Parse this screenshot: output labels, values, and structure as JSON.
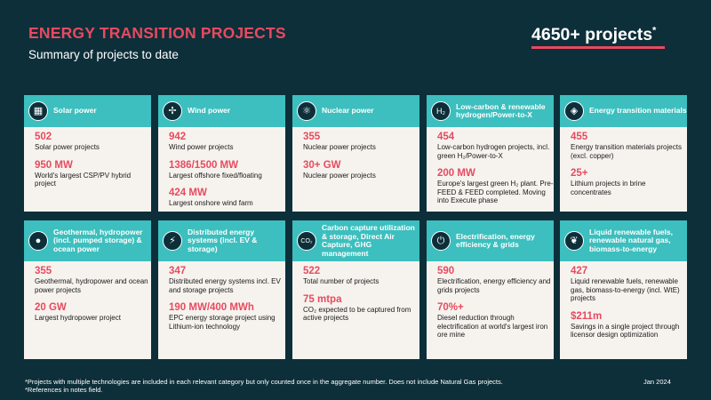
{
  "header": {
    "title": "ENERGY TRANSITION PROJECTS",
    "subtitle": "Summary of projects to date",
    "total": "4650+ projects",
    "total_mark": "*"
  },
  "cards": [
    {
      "label": "Solar power",
      "icon": "solar-panel-icon",
      "stats": [
        {
          "value": "502",
          "desc": "Solar power projects"
        },
        {
          "value": "950 MW",
          "desc": "World's largest CSP/PV hybrid project"
        }
      ]
    },
    {
      "label": "Wind power",
      "icon": "wind-turbine-icon",
      "stats": [
        {
          "value": "942",
          "desc": "Wind power projects"
        },
        {
          "value": "1386/1500 MW",
          "desc": "Largest offshore fixed/floating"
        },
        {
          "value": "424 MW",
          "desc": "Largest onshore wind farm"
        }
      ]
    },
    {
      "label": "Nuclear power",
      "icon": "atom-icon",
      "stats": [
        {
          "value": "355",
          "desc": "Nuclear power projects"
        },
        {
          "value": "30+ GW",
          "desc": "Nuclear power projects"
        }
      ]
    },
    {
      "label": "Low-carbon & renewable hydrogen/Power-to-X",
      "icon": "hydrogen-icon",
      "stats": [
        {
          "value": "454",
          "desc": "Low-carbon hydrogen projects, incl. green H₂/Power-to-X"
        },
        {
          "value": "200 MW",
          "desc": "Europe's largest green H₂ plant. Pre-FEED & FEED completed. Moving into Execute phase"
        }
      ]
    },
    {
      "label": "Energy transition materials",
      "icon": "materials-icon",
      "stats": [
        {
          "value": "455",
          "desc": "Energy transition materials projects (excl. copper)"
        },
        {
          "value": "25+",
          "desc": "Lithium projects in brine concentrates"
        }
      ]
    },
    {
      "label": "Geothermal, hydropower (incl. pumped storage) & ocean power",
      "icon": "water-drop-icon",
      "stats": [
        {
          "value": "355",
          "desc": "Geothermal, hydropower and ocean power projects"
        },
        {
          "value": "20 GW",
          "desc": "Largest hydropower project"
        }
      ]
    },
    {
      "label": "Distributed energy systems (incl. EV & storage)",
      "icon": "lightning-bolt-icon",
      "stats": [
        {
          "value": "347",
          "desc": "Distributed energy systems incl. EV and storage projects"
        },
        {
          "value": "190 MW/400 MWh",
          "desc": "EPC energy storage project using Lithium-ion technology"
        }
      ]
    },
    {
      "label": "Carbon capture utilization & storage, Direct Air Capture, GHG management",
      "icon": "co2-cloud-icon",
      "stats": [
        {
          "value": "522",
          "desc": "Total number of projects"
        },
        {
          "value": "75 mtpa",
          "desc": "CO₂ expected to be captured from active projects"
        }
      ]
    },
    {
      "label": "Electrification, energy efficiency & grids",
      "icon": "plug-icon",
      "stats": [
        {
          "value": "590",
          "desc": "Electrification, energy efficiency and grids projects"
        },
        {
          "value": "70%+",
          "desc": "Diesel reduction through electrification at world's largest iron ore mine"
        }
      ]
    },
    {
      "label": "Liquid renewable fuels, renewable natural gas, biomass-to-energy",
      "icon": "leaf-icon",
      "stats": [
        {
          "value": "427",
          "desc": "Liquid renewable fuels, renewable gas, biomass-to-energy (incl. WtE) projects"
        },
        {
          "value": "$211m",
          "desc": "Savings in a single project through licensor design optimization"
        }
      ]
    }
  ],
  "footer": {
    "note1": "*Projects with multiple technologies are included in each relevant category but only counted once in the aggregate number. Does not include Natural Gas projects.",
    "note2": "*References in notes field.",
    "date": "Jan 2024"
  },
  "colors": {
    "background": "#0d2f3a",
    "accent": "#e84a5f",
    "card_header": "#3cbfbe",
    "card_body": "#f6f3ee"
  }
}
